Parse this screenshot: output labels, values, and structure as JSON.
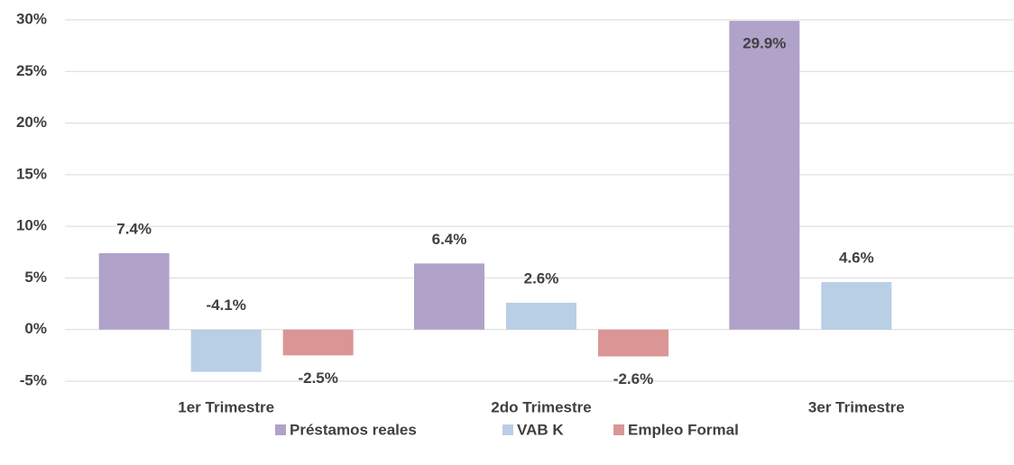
{
  "chart_data": {
    "type": "bar",
    "categories": [
      "1er Trimestre",
      "2do Trimestre",
      "3er Trimestre"
    ],
    "series": [
      {
        "name": "Préstamos reales",
        "color": "#b0a2c9",
        "values": [
          7.4,
          6.4,
          29.9
        ],
        "value_labels": [
          "7.4%",
          "6.4%",
          "29.9%"
        ]
      },
      {
        "name": "VAB K",
        "color": "#b9cfe6",
        "values": [
          -4.1,
          2.6,
          4.6
        ],
        "value_labels": [
          "-4.1%",
          "2.6%",
          "4.6%"
        ]
      },
      {
        "name": "Empleo Formal",
        "color": "#da9694",
        "values": [
          -2.5,
          -2.6,
          null
        ],
        "value_labels": [
          "-2.5%",
          "-2.6%",
          null
        ]
      }
    ],
    "ylim": [
      -5,
      30
    ],
    "yticks": [
      {
        "value": -5,
        "label": "-5%"
      },
      {
        "value": 0,
        "label": "0%"
      },
      {
        "value": 5,
        "label": "5%"
      },
      {
        "value": 10,
        "label": "10%"
      },
      {
        "value": 15,
        "label": "15%"
      },
      {
        "value": 20,
        "label": "20%"
      },
      {
        "value": 25,
        "label": "25%"
      },
      {
        "value": 30,
        "label": "30%"
      }
    ],
    "grid": true,
    "legend": "bottom"
  }
}
